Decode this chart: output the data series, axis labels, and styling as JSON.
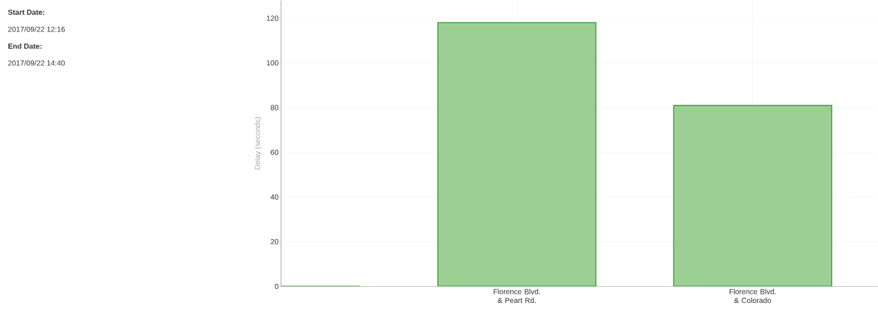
{
  "chart_data": {
    "type": "bar",
    "ylabel": "Delay (seconds)",
    "categories": [
      null,
      "Florence Blvd. & Peart Rd.",
      "Florence Blvd. & Colorado"
    ],
    "values": [
      0,
      118,
      81
    ],
    "color": "#9ccf93",
    "ylim": [
      0,
      128
    ],
    "yticks": [
      0,
      20,
      40,
      60,
      80,
      100,
      120
    ],
    "grid": true,
    "annotations": [
      "Start Date:",
      "2017/09/22 12:16",
      "End Date:",
      "2017/09/22 14:40"
    ]
  }
}
